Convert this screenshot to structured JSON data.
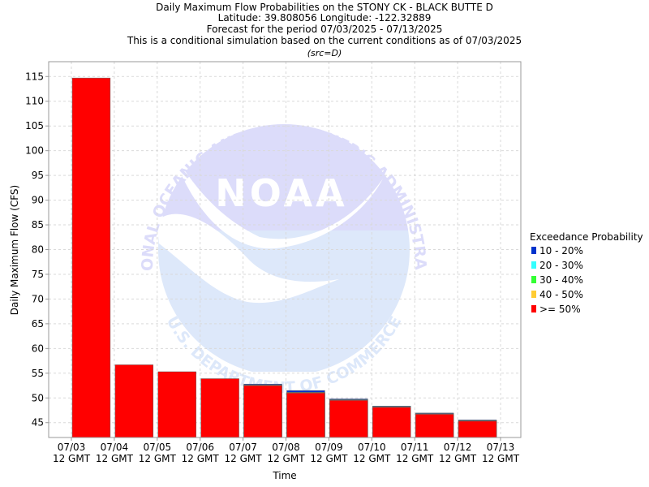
{
  "chart_data": {
    "type": "bar",
    "title_lines": [
      "Daily Maximum Flow Probabilities on the STONY CK - BLACK BUTTE D",
      "Latitude: 39.808056 Longitude: -122.32889",
      "Forecast for the period 07/03/2025 - 07/13/2025",
      "This is a conditional simulation based on the current conditions as of 07/03/2025"
    ],
    "subtitle": "(src=D)",
    "xlabel": "Time",
    "ylabel": "Daily Maximum Flow (CFS)",
    "ylim": [
      42,
      118
    ],
    "yticks": [
      45,
      50,
      55,
      60,
      65,
      70,
      75,
      80,
      85,
      90,
      95,
      100,
      105,
      110,
      115
    ],
    "grid": true,
    "x_ticks": [
      {
        "date": "07/03",
        "time": "12 GMT"
      },
      {
        "date": "07/04",
        "time": "12 GMT"
      },
      {
        "date": "07/05",
        "time": "12 GMT"
      },
      {
        "date": "07/06",
        "time": "12 GMT"
      },
      {
        "date": "07/07",
        "time": "12 GMT"
      },
      {
        "date": "07/08",
        "time": "12 GMT"
      },
      {
        "date": "07/09",
        "time": "12 GMT"
      },
      {
        "date": "07/10",
        "time": "12 GMT"
      },
      {
        "date": "07/11",
        "time": "12 GMT"
      },
      {
        "date": "07/12",
        "time": "12 GMT"
      },
      {
        "date": "07/13",
        "time": "12 GMT"
      }
    ],
    "legend": {
      "title": "Exceedance Probability",
      "placement": "right",
      "items": [
        {
          "label": "10 - 20%",
          "color": "#0033cc"
        },
        {
          "label": "20 - 30%",
          "color": "#33ffff"
        },
        {
          "label": "30 - 40%",
          "color": "#33ff33"
        },
        {
          "label": "40 - 50%",
          "color": "#ffcc33"
        },
        {
          "label": ">= 50%",
          "color": "#ff0000"
        }
      ]
    },
    "bars": [
      {
        "from": "07/03",
        "to": "07/04",
        "values": {
          ">= 50%": 114.7
        }
      },
      {
        "from": "07/04",
        "to": "07/05",
        "values": {
          ">= 50%": 56.7
        }
      },
      {
        "from": "07/05",
        "to": "07/06",
        "values": {
          ">= 50%": 55.3
        }
      },
      {
        "from": "07/06",
        "to": "07/07",
        "values": {
          ">= 50%": 53.9
        }
      },
      {
        "from": "07/07",
        "to": "07/08",
        "values": {
          ">= 50%": 52.5,
          "40 - 50%": 52.55,
          "30 - 40%": 52.6,
          "20 - 30%": 52.65,
          "10 - 20%": 52.8
        }
      },
      {
        "from": "07/08",
        "to": "07/09",
        "values": {
          ">= 50%": 51.0,
          "40 - 50%": 51.05,
          "30 - 40%": 51.1,
          "20 - 30%": 51.15,
          "10 - 20%": 51.5
        }
      },
      {
        "from": "07/09",
        "to": "07/10",
        "values": {
          ">= 50%": 49.5,
          "40 - 50%": 49.55,
          "30 - 40%": 49.6,
          "20 - 30%": 49.65,
          "10 - 20%": 49.8
        }
      },
      {
        "from": "07/10",
        "to": "07/11",
        "values": {
          ">= 50%": 48.1,
          "40 - 50%": 48.15,
          "30 - 40%": 48.2,
          "20 - 30%": 48.25,
          "10 - 20%": 48.35
        }
      },
      {
        "from": "07/11",
        "to": "07/12",
        "values": {
          ">= 50%": 46.7,
          "40 - 50%": 46.75,
          "30 - 40%": 46.8,
          "20 - 30%": 46.85,
          "10 - 20%": 46.95
        }
      },
      {
        "from": "07/12",
        "to": "07/13",
        "values": {
          ">= 50%": 45.3,
          "40 - 50%": 45.35,
          "30 - 40%": 45.4,
          "20 - 30%": 45.45,
          "10 - 20%": 45.55
        }
      }
    ]
  },
  "watermark": {
    "logo_text": "NOAA",
    "top_arc": "NATIONAL OCEANIC AND ATMOSPHERIC ADMINISTRATION",
    "bottom_arc": "U.S. DEPARTMENT OF COMMERCE"
  },
  "colors": {
    "plot_border": "#999999",
    "grid": "#d9d9d9",
    "watermark_dark": "#dcdcfa",
    "watermark_light": "#dde8fa"
  }
}
